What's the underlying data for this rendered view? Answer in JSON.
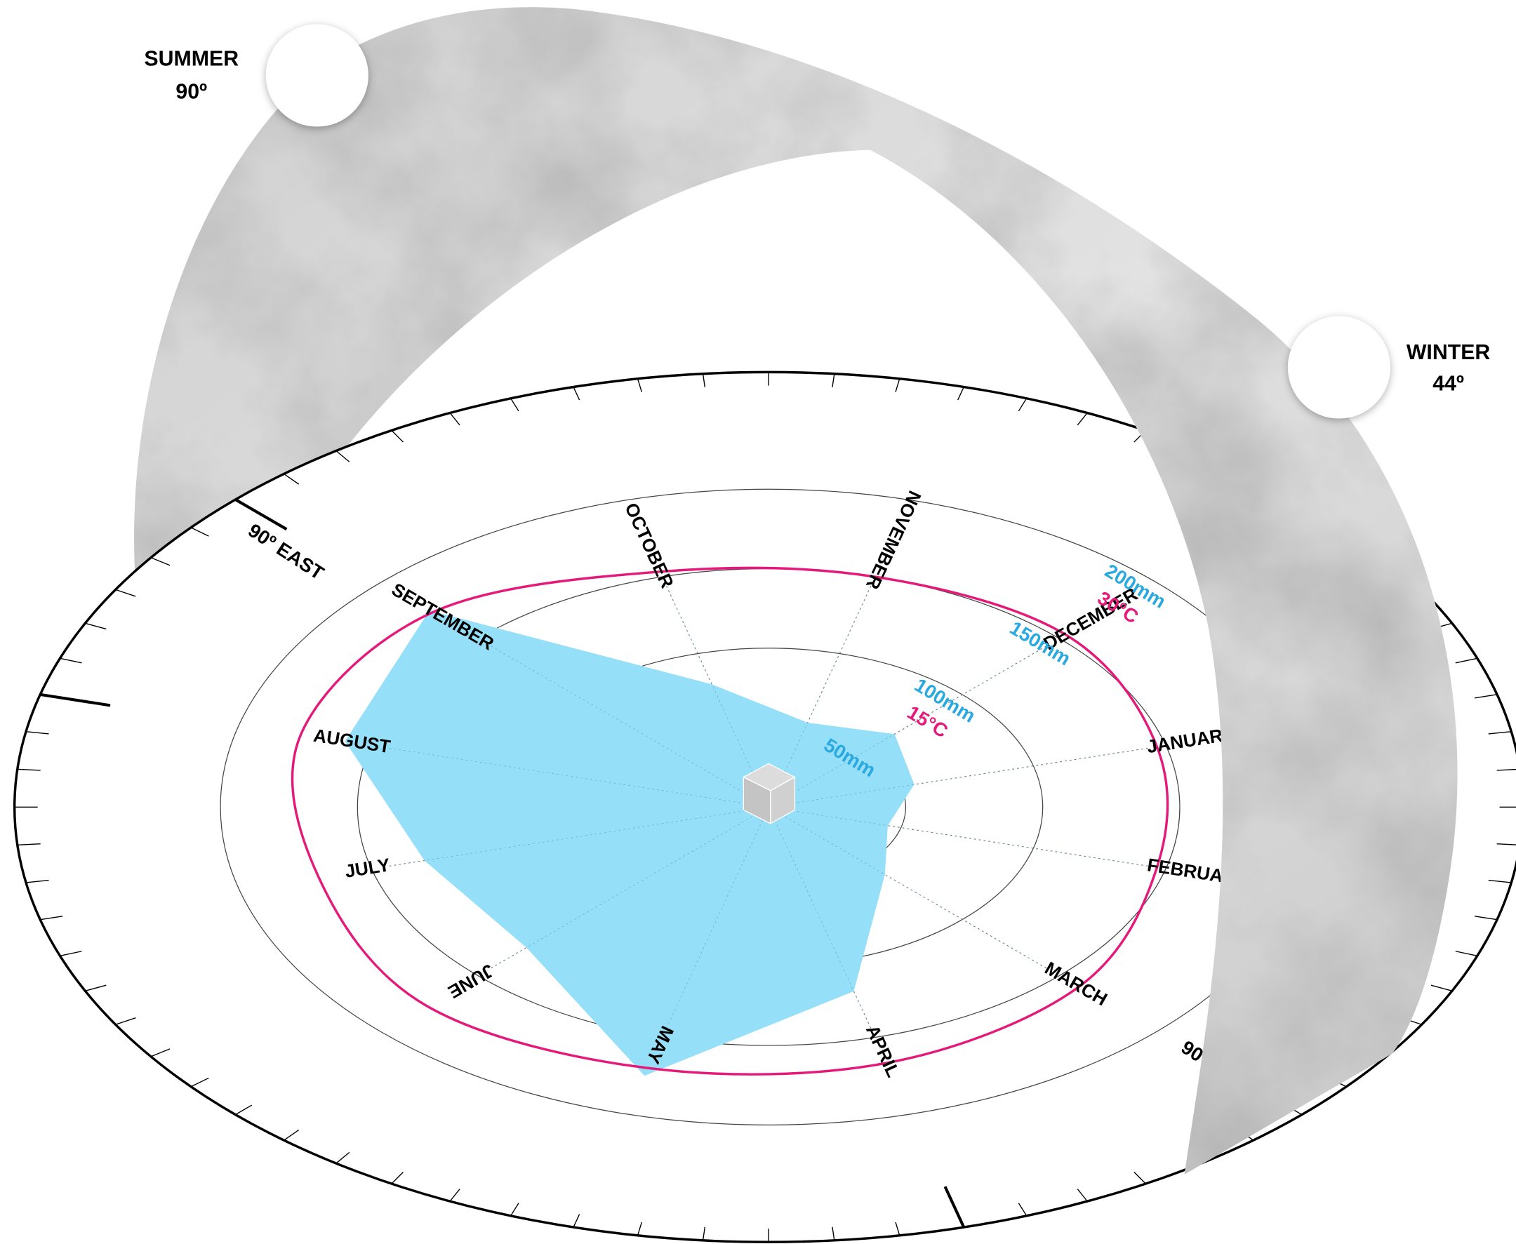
{
  "chart_data": {
    "type": "radar",
    "categories": [
      "JANUARY",
      "FEBRUARY",
      "MARCH",
      "APRIL",
      "MAY",
      "JUNE",
      "JULY",
      "AUGUST",
      "SEPTEMBER",
      "OCTOBER",
      "NOVEMBER",
      "DECEMBER"
    ],
    "series": [
      {
        "color": "#96dff8",
        "values": [
          55,
          45,
          60,
          120,
          175,
          125,
          130,
          160,
          175,
          80,
          55,
          65
        ]
      },
      {
        "color": "#e5197a",
        "axis": "y2",
        "values": [
          22,
          22,
          24,
          25,
          25.5,
          26.5,
          25.5,
          26.5,
          26,
          23,
          22.5,
          23
        ]
      }
    ],
    "ylim": [
      0,
      200
    ],
    "yticks": [
      {
        "value": 50,
        "label": "50mm"
      },
      {
        "value": 100,
        "label": "100mm"
      },
      {
        "value": 150,
        "label": "150mm"
      },
      {
        "value": 200,
        "label": "200mm"
      }
    ],
    "y2lim": [
      0,
      30
    ],
    "y2ticks": [
      {
        "value": 15,
        "label": "15°C"
      },
      {
        "value": 30,
        "label": "30°C"
      }
    ],
    "tick_color": "#29a9e0",
    "grid": true,
    "annotations": [
      "SUMMER",
      "90º",
      "WINTER",
      "44º",
      "90º EAST",
      "90º WEST"
    ]
  }
}
